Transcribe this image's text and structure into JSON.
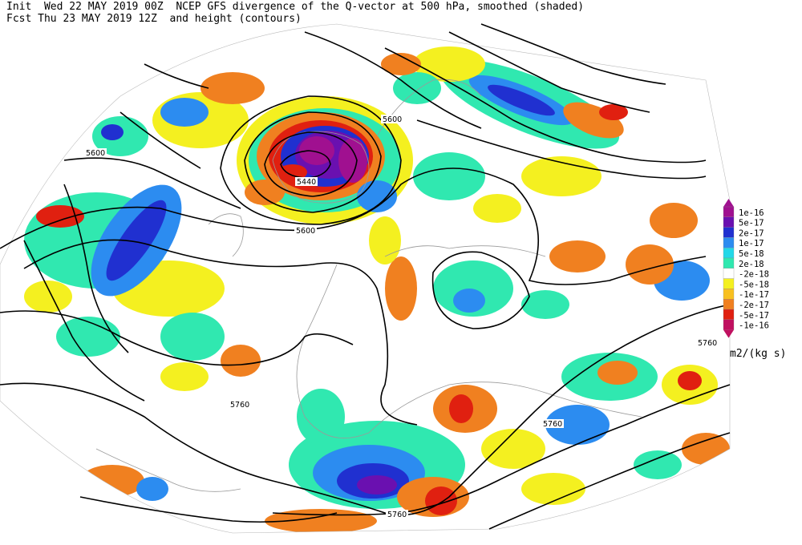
{
  "header": {
    "line1": "Init  Wed 22 MAY 2019 00Z  NCEP GFS divergence of the Q-vector at 500 hPa, smoothed (shaded)",
    "line2": "Fcst Thu 23 MAY 2019 12Z  and height (contours)"
  },
  "legend": {
    "units": "m2/(kg s)",
    "entries": [
      {
        "label": "1e-16",
        "color": "#a01090"
      },
      {
        "label": "5e-17",
        "color": "#6a10b0"
      },
      {
        "label": "2e-17",
        "color": "#2030d0"
      },
      {
        "label": "1e-17",
        "color": "#2c8cf0"
      },
      {
        "label": "5e-18",
        "color": "#22d8e8"
      },
      {
        "label": "2e-18",
        "color": "#30e8b0"
      },
      {
        "label": "-2e-18",
        "color": "#ffffff"
      },
      {
        "label": "-5e-18",
        "color": "#f4f020"
      },
      {
        "label": "-1e-17",
        "color": "#f8c020"
      },
      {
        "label": "-2e-17",
        "color": "#f08020"
      },
      {
        "label": "-5e-17",
        "color": "#e02010"
      },
      {
        "label": "-1e-16",
        "color": "#c01060"
      }
    ]
  },
  "contour_labels": [
    "5600",
    "5440",
    "5600",
    "5600",
    "5760",
    "5760",
    "5760",
    "5760"
  ]
}
